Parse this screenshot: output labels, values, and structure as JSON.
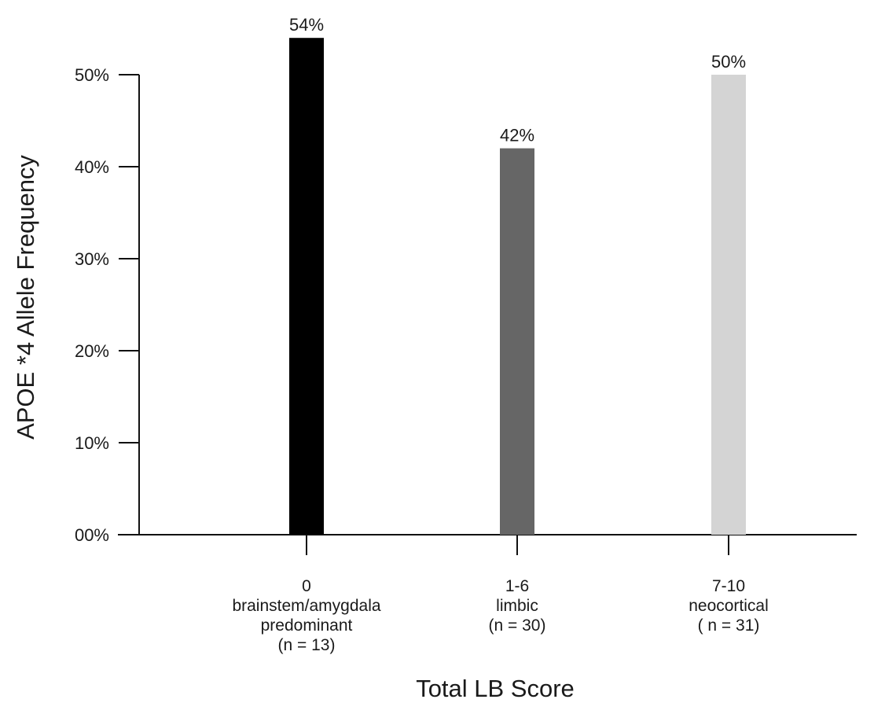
{
  "chart_data": {
    "type": "bar",
    "title": "",
    "xlabel": "Total LB Score",
    "ylabel": "APOE *4 Allele Frequency",
    "ylim": [
      0,
      50
    ],
    "yticks": [
      0,
      10,
      20,
      30,
      40,
      50
    ],
    "ytick_labels": [
      "00%",
      "10%",
      "20%",
      "30%",
      "40%",
      "50%"
    ],
    "grid": false,
    "categories": [
      {
        "lines": [
          "0",
          "brainstem/amygdala",
          "predominant",
          "(n = 13)"
        ]
      },
      {
        "lines": [
          "1-6",
          "limbic",
          "(n = 30)"
        ]
      },
      {
        "lines": [
          "7-10",
          "neocortical",
          "( n = 31)"
        ]
      }
    ],
    "values": [
      54,
      42,
      50
    ],
    "data_labels": [
      "54%",
      "42%",
      "50%"
    ],
    "colors": [
      "#000000",
      "#666666",
      "#d4d4d4"
    ]
  }
}
